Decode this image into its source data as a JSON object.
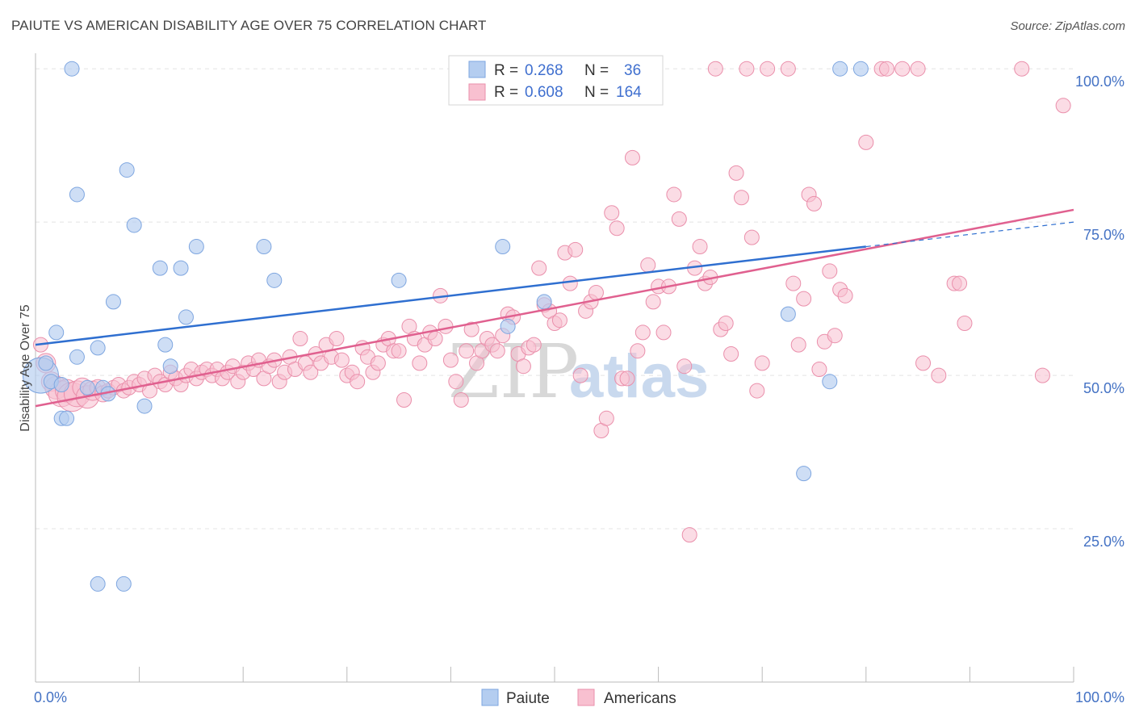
{
  "title": "PAIUTE VS AMERICAN DISABILITY AGE OVER 75 CORRELATION CHART",
  "source": "Source: ZipAtlas.com",
  "watermark": {
    "zip": "ZIP",
    "atlas": "atlas"
  },
  "colors": {
    "paiute_fill": "#b4cdf0",
    "paiute_stroke": "#7ea6e0",
    "paiute_line": "#2f6fd0",
    "americans_fill": "#f8c0d0",
    "americans_stroke": "#ea8fab",
    "americans_line": "#e0608f",
    "grid": "#e4e4e4",
    "axis_text": "#4472c4"
  },
  "legend": {
    "row1": {
      "r_label": "R = ",
      "r_value": "0.268",
      "n_label": "N = ",
      "n_value": "36"
    },
    "row2": {
      "r_label": "R = ",
      "r_value": "0.608",
      "n_label": "N = ",
      "n_value": "164"
    }
  },
  "bottom_legend": {
    "paiute": "Paiute",
    "americans": "Americans"
  },
  "chart_data": {
    "type": "scatter",
    "xlabel": "",
    "ylabel": "Disability Age Over 75",
    "xlim": [
      0,
      100
    ],
    "ylim": [
      0,
      102
    ],
    "x_tick_labels": [
      "0.0%",
      "100.0%"
    ],
    "y_ticks": [
      25,
      50,
      75,
      100
    ],
    "y_tick_labels": [
      "25.0%",
      "50.0%",
      "75.0%",
      "100.0%"
    ],
    "grid": true,
    "legend_position": "top-center",
    "series": [
      {
        "name": "Paiute",
        "R": 0.268,
        "N": 36,
        "trend": {
          "x0": 0,
          "y0": 55,
          "x1": 80,
          "y1": 71,
          "dashed_to": [
            100,
            75
          ]
        },
        "points": [
          [
            0.5,
            50,
            22
          ],
          [
            3.5,
            100,
            9
          ],
          [
            8.8,
            83.5,
            9
          ],
          [
            4,
            79.5,
            9
          ],
          [
            9.5,
            74.5,
            9
          ],
          [
            15.5,
            71,
            9
          ],
          [
            22,
            71,
            9
          ],
          [
            12,
            67.5,
            9
          ],
          [
            14,
            67.5,
            9
          ],
          [
            7.5,
            62,
            9
          ],
          [
            23,
            65.5,
            9
          ],
          [
            35,
            65.5,
            9
          ],
          [
            14.5,
            59.5,
            9
          ],
          [
            2,
            57,
            9
          ],
          [
            6,
            54.5,
            9
          ],
          [
            12.5,
            55,
            9
          ],
          [
            4,
            53,
            9
          ],
          [
            13,
            51.5,
            9
          ],
          [
            1,
            52,
            9
          ],
          [
            1.5,
            49,
            9
          ],
          [
            2.5,
            48.5,
            9
          ],
          [
            5,
            48,
            9
          ],
          [
            6.5,
            48,
            9
          ],
          [
            7,
            47,
            9
          ],
          [
            10.5,
            45,
            9
          ],
          [
            2.5,
            43,
            9
          ],
          [
            3,
            43,
            9
          ],
          [
            6,
            16,
            9
          ],
          [
            8.5,
            16,
            9
          ],
          [
            45,
            71,
            9
          ],
          [
            49,
            62,
            9
          ],
          [
            45.5,
            58,
            9
          ],
          [
            72.5,
            60,
            9
          ],
          [
            76.5,
            49,
            9
          ],
          [
            74,
            34,
            9
          ],
          [
            77.5,
            100,
            9
          ],
          [
            79.5,
            100,
            9
          ]
        ]
      },
      {
        "name": "Americans",
        "R": 0.608,
        "N": 164,
        "trend": {
          "x0": 0,
          "y0": 45,
          "x1": 100,
          "y1": 77
        },
        "points": [
          [
            0.5,
            55,
            9
          ],
          [
            1,
            52,
            12
          ],
          [
            1.5,
            49,
            12
          ],
          [
            2,
            48,
            14
          ],
          [
            2.5,
            47,
            16
          ],
          [
            3,
            47.5,
            14
          ],
          [
            3.5,
            46.5,
            18
          ],
          [
            4,
            47,
            16
          ],
          [
            4.5,
            48,
            12
          ],
          [
            5,
            46.5,
            14
          ],
          [
            5.5,
            47.5,
            12
          ],
          [
            6,
            48,
            10
          ],
          [
            6.5,
            47,
            10
          ],
          [
            7,
            47.5,
            9
          ],
          [
            7.5,
            48,
            9
          ],
          [
            8,
            48.5,
            9
          ],
          [
            8.5,
            47.5,
            9
          ],
          [
            9,
            48,
            9
          ],
          [
            9.5,
            49,
            9
          ],
          [
            10,
            48.5,
            9
          ],
          [
            10.5,
            49.5,
            9
          ],
          [
            11,
            47.5,
            9
          ],
          [
            11.5,
            50,
            9
          ],
          [
            12,
            49,
            9
          ],
          [
            12.5,
            48.5,
            9
          ],
          [
            13,
            50.5,
            9
          ],
          [
            13.5,
            49.5,
            9
          ],
          [
            14,
            48.5,
            9
          ],
          [
            14.5,
            50,
            9
          ],
          [
            15,
            51,
            9
          ],
          [
            15.5,
            49.5,
            9
          ],
          [
            16,
            50.5,
            9
          ],
          [
            16.5,
            51,
            9
          ],
          [
            17,
            50,
            9
          ],
          [
            17.5,
            51,
            9
          ],
          [
            18,
            49.5,
            9
          ],
          [
            18.5,
            50.5,
            9
          ],
          [
            19,
            51.5,
            9
          ],
          [
            19.5,
            49,
            9
          ],
          [
            20,
            50.5,
            9
          ],
          [
            20.5,
            52,
            9
          ],
          [
            21,
            51,
            9
          ],
          [
            21.5,
            52.5,
            9
          ],
          [
            22,
            49.5,
            9
          ],
          [
            22.5,
            51.5,
            9
          ],
          [
            23,
            52.5,
            9
          ],
          [
            23.5,
            49,
            9
          ],
          [
            24,
            50.5,
            9
          ],
          [
            24.5,
            53,
            9
          ],
          [
            25,
            51,
            9
          ],
          [
            25.5,
            56,
            9
          ],
          [
            26,
            52,
            9
          ],
          [
            26.5,
            50.5,
            9
          ],
          [
            27,
            53.5,
            9
          ],
          [
            27.5,
            52,
            9
          ],
          [
            28,
            55,
            9
          ],
          [
            28.5,
            53,
            9
          ],
          [
            29,
            56,
            9
          ],
          [
            29.5,
            52.5,
            9
          ],
          [
            30,
            50,
            9
          ],
          [
            30.5,
            50.5,
            9
          ],
          [
            31,
            49,
            9
          ],
          [
            31.5,
            54.5,
            9
          ],
          [
            32,
            53,
            9
          ],
          [
            32.5,
            50.5,
            9
          ],
          [
            33,
            52,
            9
          ],
          [
            33.5,
            55,
            9
          ],
          [
            34,
            56,
            9
          ],
          [
            34.5,
            54,
            9
          ],
          [
            35,
            54,
            9
          ],
          [
            35.5,
            46,
            9
          ],
          [
            36,
            58,
            9
          ],
          [
            36.5,
            56,
            9
          ],
          [
            37,
            52,
            9
          ],
          [
            37.5,
            55,
            9
          ],
          [
            38,
            57,
            9
          ],
          [
            38.5,
            56,
            9
          ],
          [
            39,
            63,
            9
          ],
          [
            39.5,
            58,
            9
          ],
          [
            40,
            52.5,
            9
          ],
          [
            40.5,
            49,
            9
          ],
          [
            41,
            46,
            9
          ],
          [
            41.5,
            54,
            9
          ],
          [
            42,
            57.5,
            9
          ],
          [
            42.5,
            52,
            9
          ],
          [
            43,
            54,
            9
          ],
          [
            43.5,
            56,
            9
          ],
          [
            44,
            55,
            9
          ],
          [
            44.5,
            54,
            9
          ],
          [
            45,
            56.5,
            9
          ],
          [
            45.5,
            60,
            9
          ],
          [
            46,
            59.5,
            9
          ],
          [
            46.5,
            53.5,
            9
          ],
          [
            47,
            51.5,
            9
          ],
          [
            47.5,
            54.5,
            9
          ],
          [
            48,
            55,
            9
          ],
          [
            48.5,
            67.5,
            9
          ],
          [
            49,
            61.5,
            9
          ],
          [
            49.5,
            60.5,
            9
          ],
          [
            50,
            58.5,
            9
          ],
          [
            50.5,
            59,
            9
          ],
          [
            51,
            70,
            9
          ],
          [
            51.5,
            65,
            9
          ],
          [
            52,
            70.5,
            9
          ],
          [
            52.5,
            50,
            9
          ],
          [
            53,
            60.5,
            9
          ],
          [
            53.5,
            62,
            9
          ],
          [
            54,
            63.5,
            9
          ],
          [
            54.5,
            41,
            9
          ],
          [
            55,
            43,
            9
          ],
          [
            55.5,
            76.5,
            9
          ],
          [
            56,
            74,
            9
          ],
          [
            56.5,
            49.5,
            9
          ],
          [
            57,
            49.5,
            9
          ],
          [
            57.5,
            85.5,
            9
          ],
          [
            58,
            54,
            9
          ],
          [
            58.5,
            57,
            9
          ],
          [
            59,
            68,
            9
          ],
          [
            59.5,
            62,
            9
          ],
          [
            60,
            64.5,
            9
          ],
          [
            60.5,
            57,
            9
          ],
          [
            61,
            64.5,
            9
          ],
          [
            61.5,
            79.5,
            9
          ],
          [
            62,
            75.5,
            9
          ],
          [
            62.5,
            51.5,
            9
          ],
          [
            63,
            24,
            9
          ],
          [
            63.5,
            67.5,
            9
          ],
          [
            64,
            71,
            9
          ],
          [
            64.5,
            65,
            9
          ],
          [
            65,
            66,
            9
          ],
          [
            65.5,
            100,
            9
          ],
          [
            66,
            57.5,
            9
          ],
          [
            66.5,
            58.5,
            9
          ],
          [
            67,
            53.5,
            9
          ],
          [
            67.5,
            83,
            9
          ],
          [
            68,
            79,
            9
          ],
          [
            68.5,
            100,
            9
          ],
          [
            69,
            72.5,
            9
          ],
          [
            69.5,
            47.5,
            9
          ],
          [
            70,
            52,
            9
          ],
          [
            70.5,
            100,
            9
          ],
          [
            72.5,
            100,
            9
          ],
          [
            73,
            65,
            9
          ],
          [
            73.5,
            55,
            9
          ],
          [
            74,
            62.5,
            9
          ],
          [
            74.5,
            79.5,
            9
          ],
          [
            75,
            78,
            9
          ],
          [
            75.5,
            51,
            9
          ],
          [
            76,
            55.5,
            9
          ],
          [
            76.5,
            67,
            9
          ],
          [
            77,
            56.5,
            9
          ],
          [
            77.5,
            64,
            9
          ],
          [
            78,
            63,
            9
          ],
          [
            80,
            88,
            9
          ],
          [
            81.5,
            100,
            9
          ],
          [
            82,
            100,
            9
          ],
          [
            83.5,
            100,
            9
          ],
          [
            85,
            100,
            9
          ],
          [
            85.5,
            52,
            9
          ],
          [
            87,
            50,
            9
          ],
          [
            88.5,
            65,
            9
          ],
          [
            89,
            65,
            9
          ],
          [
            89.5,
            58.5,
            9
          ],
          [
            95,
            100,
            9
          ],
          [
            97,
            50,
            9
          ],
          [
            99,
            94,
            9
          ]
        ]
      }
    ]
  }
}
